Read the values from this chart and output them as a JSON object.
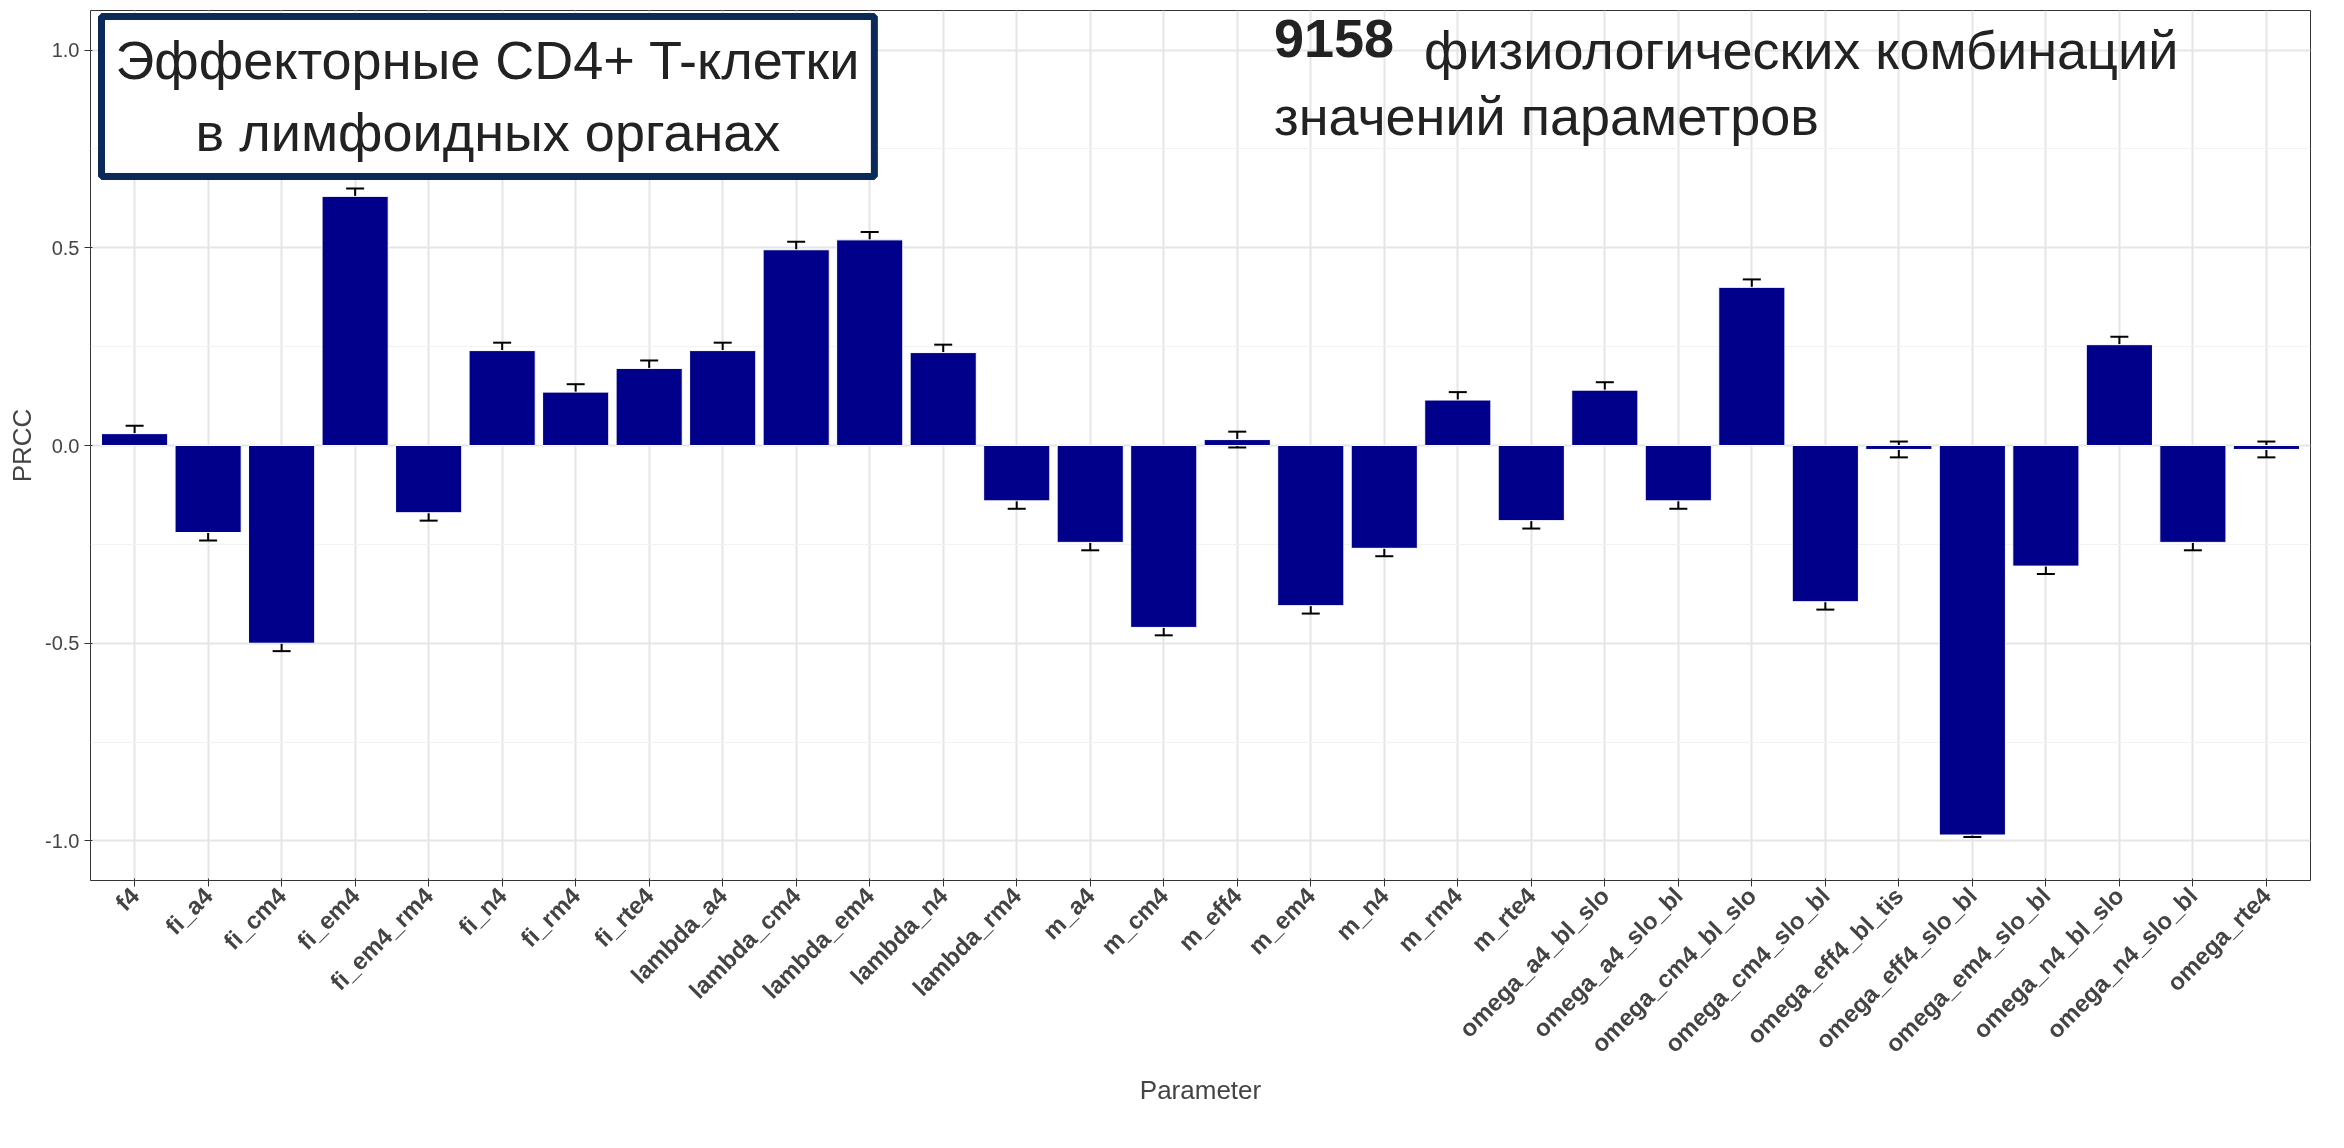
{
  "chart_data": {
    "type": "bar",
    "title": "Эффекторные CD4+ T-клетки\nв лимфоидных органах",
    "xlabel": "Parameter",
    "ylabel": "PRCC",
    "annotations": [
      "9158 физиологических комбинаций\nзначений параметров"
    ],
    "categories": [
      "f4",
      "fi_a4",
      "fi_cm4",
      "fi_em4",
      "fi_em4_rm4",
      "fi_n4",
      "fi_rm4",
      "fi_rte4",
      "lambda_a4",
      "lambda_cm4",
      "lambda_em4",
      "lambda_n4",
      "lambda_rm4",
      "m_a4",
      "m_cm4",
      "m_eff4",
      "m_em4",
      "m_n4",
      "m_rm4",
      "m_rte4",
      "omega_a4_bl_slo",
      "omega_a4_slo_bl",
      "omega_cm4_bl_slo",
      "omega_cm4_slo_bl",
      "omega_eff4_bl_tis",
      "omega_eff4_slo_bl",
      "omega_em4_slo_bl",
      "omega_n4_bl_slo",
      "omega_n4_slo_bl",
      "omega_rte4"
    ],
    "values": [
      0.03,
      -0.22,
      -0.5,
      0.63,
      -0.17,
      0.24,
      0.135,
      0.195,
      0.24,
      0.495,
      0.52,
      0.235,
      -0.14,
      -0.245,
      -0.46,
      0.015,
      -0.405,
      -0.26,
      0.115,
      -0.19,
      0.14,
      -0.14,
      0.4,
      -0.395,
      -0.01,
      -0.985,
      -0.305,
      0.255,
      -0.245,
      -0.01
    ],
    "errors": [
      0.02,
      0.02,
      0.02,
      0.02,
      0.02,
      0.02,
      0.02,
      0.02,
      0.02,
      0.02,
      0.02,
      0.02,
      0.02,
      0.02,
      0.02,
      0.02,
      0.02,
      0.02,
      0.02,
      0.02,
      0.02,
      0.02,
      0.02,
      0.02,
      0.02,
      0.005,
      0.02,
      0.02,
      0.02,
      0.02
    ],
    "color": "#00008b",
    "ylim": [
      -1.1,
      1.1
    ],
    "yticks": [
      {
        "value": -1,
        "label": "-1.0"
      },
      {
        "value": -0.5,
        "label": "-0.5"
      },
      {
        "value": 0,
        "label": "0.0"
      },
      {
        "value": 0.5,
        "label": "0.5"
      },
      {
        "value": 1,
        "label": "1.0"
      }
    ],
    "grid": true
  }
}
